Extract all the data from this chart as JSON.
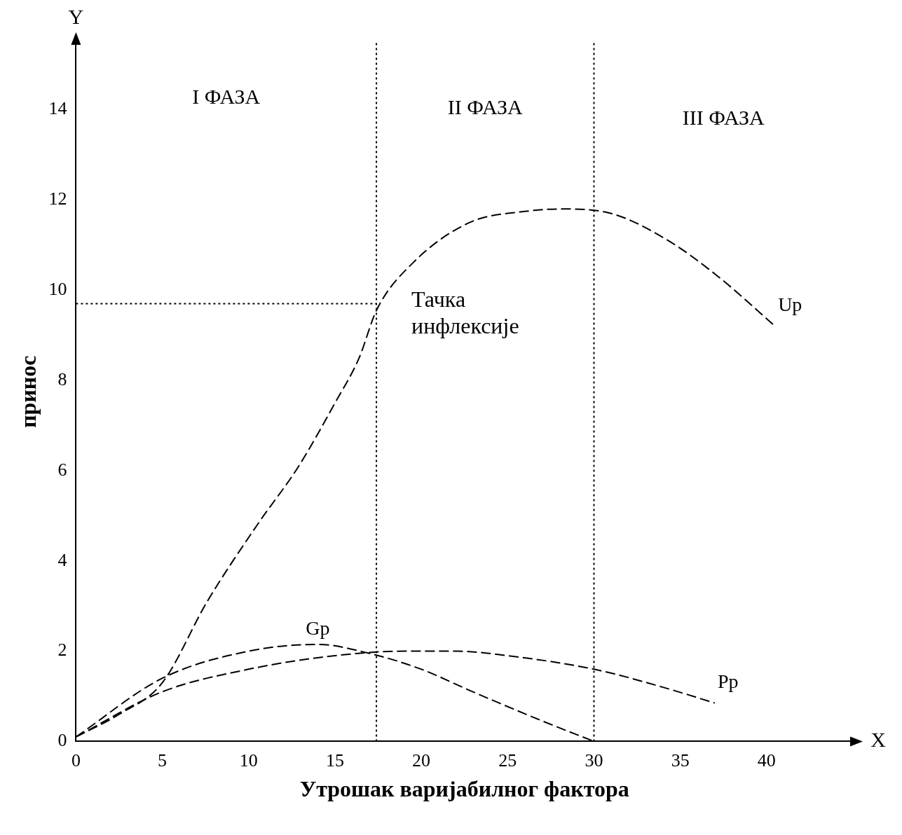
{
  "chart_data": {
    "type": "line",
    "xlabel": "Утрошак варијабилног фактора",
    "ylabel": "принос",
    "xlim": [
      0,
      45
    ],
    "ylim": [
      0,
      15.5
    ],
    "xticks": [
      0,
      5,
      10,
      15,
      20,
      25,
      30,
      35,
      40
    ],
    "yticks": [
      0,
      2,
      4,
      6,
      8,
      10,
      12,
      14
    ],
    "legend": false,
    "marker": "none",
    "line_style": "dashed",
    "series": [
      {
        "name": "Up",
        "color": "#000000",
        "x": [
          0,
          2.5,
          5,
          7.6,
          10.5,
          12.9,
          15,
          16.4,
          17.4,
          19.5,
          22.8,
          26.1,
          28.1,
          31,
          34.3,
          37.2,
          40.5
        ],
        "values": [
          0.1,
          0.6,
          1.3,
          3.1,
          4.8,
          6.1,
          7.5,
          8.5,
          9.55,
          10.6,
          11.5,
          11.75,
          11.8,
          11.7,
          11.1,
          10.3,
          9.2
        ]
      },
      {
        "name": "Gp",
        "color": "#000000",
        "x": [
          0,
          5,
          10,
          14,
          17,
          20,
          22.8,
          26.9,
          30
        ],
        "values": [
          0.1,
          1.4,
          2.0,
          2.15,
          1.95,
          1.6,
          1.13,
          0.47,
          0
        ]
      },
      {
        "name": "Pp",
        "color": "#000000",
        "x": [
          0,
          5,
          10,
          15,
          19,
          22,
          25,
          30,
          34,
          37
        ],
        "values": [
          0.1,
          1.1,
          1.6,
          1.9,
          2.0,
          2.0,
          1.9,
          1.6,
          1.2,
          0.85
        ]
      },
      {
        "type": "line",
        "color": "#000000",
        "line_style": "dotted",
        "x": [
          0,
          17.4
        ],
        "values": [
          9.7,
          9.7
        ]
      }
    ],
    "ref_lines": [
      {
        "axis": "x",
        "value": 17.4,
        "color": "#000000",
        "line_style": "dotted"
      },
      {
        "axis": "x",
        "value": 30,
        "color": "#000000",
        "line_style": "dotted"
      }
    ],
    "annotations": [
      "I ФАЗА",
      "II ФАЗА",
      "III ФАЗА",
      {
        "text": "Тачка инфлексије",
        "x": 17.4,
        "y": 9.55
      },
      "Y",
      "X"
    ]
  }
}
